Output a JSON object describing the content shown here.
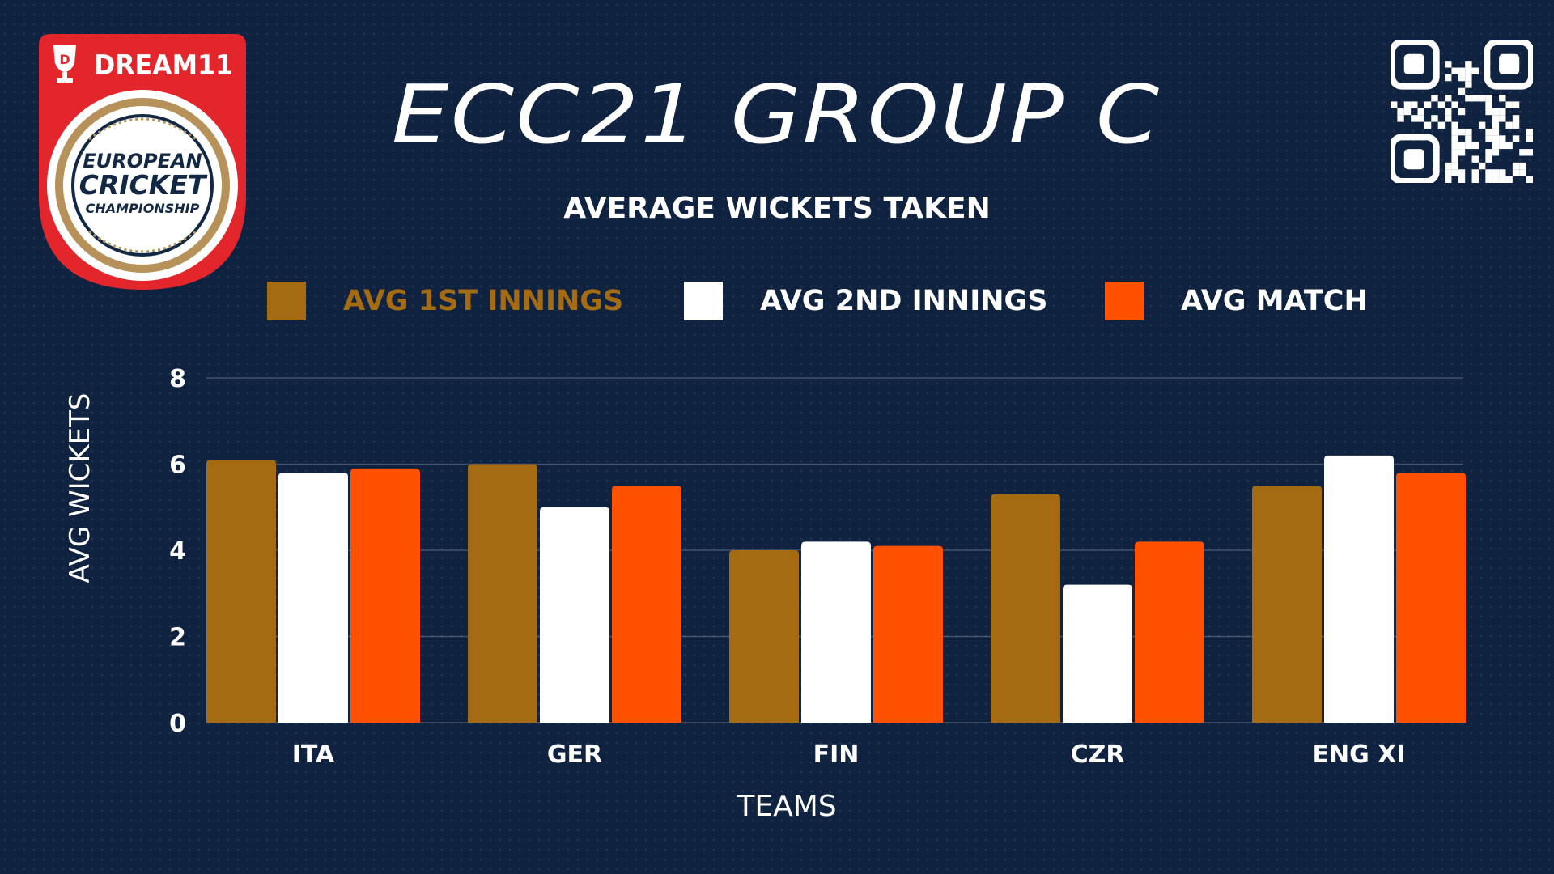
{
  "logo": {
    "brand": "DREAM11",
    "line1": "EUROPEAN",
    "line2": "CRICKET",
    "line3": "CHAMPIONSHIP"
  },
  "title": "ECC21 GROUP C",
  "subtitle": "AVERAGE WICKETS TAKEN",
  "colors": {
    "background": "#0f2240",
    "first_innings": "#a46b12",
    "second_innings": "#ffffff",
    "match": "#ff5100",
    "logo_red": "#e3262b",
    "logo_gold": "#b6925a",
    "logo_navy": "#122845"
  },
  "qr_icon": "qr-code-icon",
  "chart_data": {
    "type": "bar",
    "categories": [
      "ITA",
      "GER",
      "FIN",
      "CZR",
      "ENG XI"
    ],
    "series": [
      {
        "name": "AVG 1ST INNINGS",
        "values": [
          6.1,
          6.0,
          4.0,
          5.3,
          5.5
        ]
      },
      {
        "name": "AVG 2ND INNINGS",
        "values": [
          5.8,
          5.0,
          4.2,
          3.2,
          6.2
        ]
      },
      {
        "name": "AVG MATCH",
        "values": [
          5.9,
          5.5,
          4.1,
          4.2,
          5.8
        ]
      }
    ],
    "xlabel": "TEAMS",
    "ylabel": "AVG WICKETS",
    "ylim": [
      0,
      8
    ],
    "yticks": [
      "0",
      "2",
      "4",
      "6",
      "8"
    ],
    "grid": true,
    "legend": "top"
  }
}
